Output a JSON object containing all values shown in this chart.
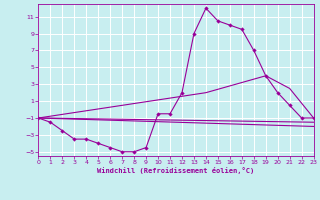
{
  "bg_color": "#c8eef0",
  "grid_color": "#ffffff",
  "line_color": "#990099",
  "xlim": [
    0,
    23
  ],
  "ylim": [
    -5.5,
    12.5
  ],
  "xticks": [
    0,
    1,
    2,
    3,
    4,
    5,
    6,
    7,
    8,
    9,
    10,
    11,
    12,
    13,
    14,
    15,
    16,
    17,
    18,
    19,
    20,
    21,
    22,
    23
  ],
  "yticks": [
    -5,
    -3,
    -1,
    1,
    3,
    5,
    7,
    9,
    11
  ],
  "xlabel": "Windchill (Refroidissement éolien,°C)",
  "line1_x": [
    0,
    1,
    2,
    3,
    4,
    5,
    6,
    7,
    8,
    9,
    10,
    11,
    12,
    13,
    14,
    15,
    16,
    17,
    18,
    19,
    20,
    21,
    22,
    23
  ],
  "line1_y": [
    -1,
    -1.5,
    -2.5,
    -3.5,
    -3.5,
    -4,
    -4.5,
    -5,
    -5,
    -4.5,
    -0.5,
    -0.5,
    2,
    9,
    12,
    10.5,
    10,
    9.5,
    7,
    4,
    2,
    0.5,
    -1,
    -1
  ],
  "line2_x": [
    0,
    23
  ],
  "line2_y": [
    -1,
    -1.5
  ],
  "line3_x": [
    0,
    23
  ],
  "line3_y": [
    -1,
    -2
  ],
  "line4_x": [
    0,
    14,
    19,
    21,
    23
  ],
  "line4_y": [
    -1,
    2,
    4,
    2.5,
    -1
  ]
}
